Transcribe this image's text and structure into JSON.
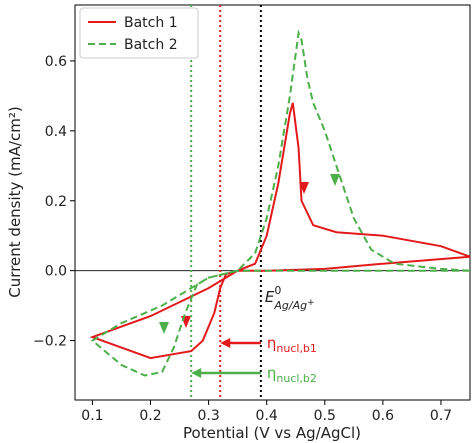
{
  "chart_data": {
    "type": "line",
    "xlabel": "Potential (V vs Ag/AgCl)",
    "ylabel": "Current density (mA/cm²)",
    "xlim": [
      0.07,
      0.75
    ],
    "ylim": [
      -0.37,
      0.76
    ],
    "xticks": [
      0.1,
      0.2,
      0.3,
      0.4,
      0.5,
      0.6,
      0.7
    ],
    "yticks": [
      {
        "value": -0.2,
        "label": "−0.2"
      },
      {
        "value": 0,
        "label": "0.0"
      },
      0.2,
      0.4,
      0.6
    ],
    "legend": "upper left",
    "series": [
      {
        "name": "Batch 1",
        "color": "#e31a1c",
        "style": "solid",
        "x": [
          0.75,
          0.6,
          0.5,
          0.4,
          0.35,
          0.33,
          0.32,
          0.31,
          0.29,
          0.27,
          0.2,
          0.1,
          0.2,
          0.3,
          0.35,
          0.38,
          0.4,
          0.42,
          0.44,
          0.445,
          0.455,
          0.46,
          0.48,
          0.52,
          0.6,
          0.7,
          0.75
        ],
        "values": [
          0.04,
          0.02,
          0.005,
          0.0,
          0.0,
          -0.01,
          -0.05,
          -0.12,
          -0.2,
          -0.23,
          -0.25,
          -0.19,
          -0.13,
          -0.05,
          0.0,
          0.02,
          0.1,
          0.25,
          0.45,
          0.48,
          0.35,
          0.2,
          0.13,
          0.11,
          0.1,
          0.07,
          0.04
        ]
      },
      {
        "name": "Batch 2",
        "color": "#4daf4a",
        "style": "dashed",
        "x": [
          0.75,
          0.5,
          0.4,
          0.35,
          0.3,
          0.28,
          0.26,
          0.24,
          0.22,
          0.19,
          0.15,
          0.1,
          0.15,
          0.22,
          0.26,
          0.3,
          0.35,
          0.38,
          0.4,
          0.42,
          0.44,
          0.455,
          0.46,
          0.47,
          0.48,
          0.5,
          0.52,
          0.55,
          0.58,
          0.62,
          0.7,
          0.75
        ],
        "values": [
          0.0,
          0.0,
          0.0,
          0.0,
          -0.02,
          -0.04,
          -0.12,
          -0.22,
          -0.29,
          -0.3,
          -0.27,
          -0.2,
          -0.15,
          -0.1,
          -0.06,
          -0.02,
          0.0,
          0.05,
          0.15,
          0.3,
          0.5,
          0.68,
          0.66,
          0.55,
          0.48,
          0.4,
          0.3,
          0.15,
          0.06,
          0.02,
          0.005,
          0.0
        ]
      }
    ],
    "vlines": [
      {
        "x": 0.39,
        "color": "#000000"
      },
      {
        "x": 0.32,
        "color": "#e31a1c"
      },
      {
        "x": 0.27,
        "color": "#4daf4a"
      }
    ],
    "annotations": [
      {
        "main": "E",
        "sup": "0",
        "sub": "Ag/Ag",
        "sub_sup": "+"
      },
      {
        "main": "η",
        "sub": "nucl,b1",
        "color": "#e31a1c"
      },
      {
        "main": "η",
        "sub": "nucl,b2",
        "color": "#4daf4a"
      }
    ]
  }
}
